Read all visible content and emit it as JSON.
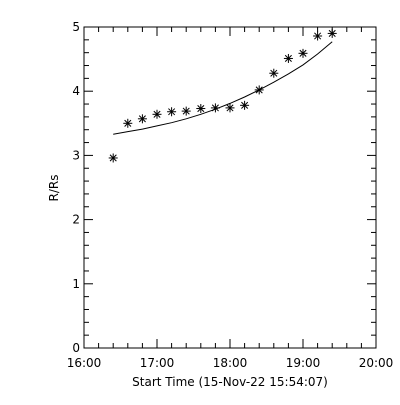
{
  "chart_data": {
    "type": "scatter",
    "xlabel": "Start Time (15-Nov-22 15:54:07)",
    "ylabel": "R/Rs",
    "x_axis": {
      "unit": "hours",
      "range": [
        16.0,
        20.0
      ],
      "ticks": [
        16.0,
        17.0,
        18.0,
        19.0,
        20.0
      ],
      "tick_labels": [
        "16:00",
        "17:00",
        "18:00",
        "19:00",
        "20:00"
      ],
      "minor_ticks_per_major": 5
    },
    "y_axis": {
      "range": [
        0,
        5
      ],
      "ticks": [
        0,
        1,
        2,
        3,
        4,
        5
      ],
      "tick_labels": [
        "0",
        "1",
        "2",
        "3",
        "4",
        "5"
      ],
      "minor_ticks_per_major": 5
    },
    "grid": false,
    "series": [
      {
        "marker": "asterisk",
        "x_labels": [
          "16:24",
          "16:36",
          "16:48",
          "17:00",
          "17:12",
          "17:24",
          "17:36",
          "17:48",
          "18:00",
          "18:12",
          "18:24",
          "18:36",
          "18:48",
          "19:00",
          "19:12",
          "19:24"
        ],
        "x": [
          16.4,
          16.6,
          16.8,
          17.0,
          17.2,
          17.4,
          17.6,
          17.8,
          18.0,
          18.2,
          18.4,
          18.6,
          18.8,
          19.0,
          19.2,
          19.4
        ],
        "y": [
          2.96,
          3.5,
          3.57,
          3.64,
          3.68,
          3.69,
          3.73,
          3.74,
          3.74,
          3.78,
          4.02,
          4.28,
          4.51,
          4.59,
          4.86,
          4.9
        ]
      },
      {
        "type": "line",
        "x": [
          16.4,
          16.6,
          16.8,
          17.0,
          17.2,
          17.4,
          17.6,
          17.8,
          18.0,
          18.2,
          18.4,
          18.6,
          18.8,
          19.0,
          19.2,
          19.4
        ],
        "y": [
          3.33,
          3.37,
          3.41,
          3.46,
          3.51,
          3.57,
          3.64,
          3.72,
          3.81,
          3.91,
          4.02,
          4.14,
          4.27,
          4.41,
          4.58,
          4.77
        ]
      }
    ]
  }
}
